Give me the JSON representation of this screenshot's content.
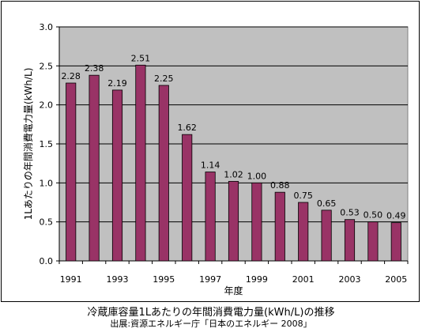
{
  "chart_data": {
    "type": "bar",
    "categories": [
      "1991",
      "1992",
      "1993",
      "1994",
      "1995",
      "1996",
      "1997",
      "1998",
      "1999",
      "2000",
      "2001",
      "2002",
      "2003",
      "2004",
      "2005"
    ],
    "values": [
      2.28,
      2.38,
      2.19,
      2.51,
      2.25,
      1.62,
      1.14,
      1.02,
      1.0,
      0.88,
      0.75,
      0.65,
      0.53,
      0.5,
      0.49
    ],
    "data_labels": [
      "2.28",
      "2.38",
      "2.19",
      "2.51",
      "2.25",
      "1.62",
      "1.14",
      "1.02",
      "1.00",
      "0.88",
      "0.75",
      "0.65",
      "0.53",
      "0.50",
      "0.49"
    ],
    "x_tick_labels": [
      "1991",
      "1993",
      "1995",
      "1997",
      "1999",
      "2001",
      "2003",
      "2005"
    ],
    "y_tick_labels": [
      "0.0",
      "0.5",
      "1.0",
      "1.5",
      "2.0",
      "2.5",
      "3.0"
    ],
    "xlabel": "年度",
    "ylabel": "1Lあたりの年間消費電力量(kWh/L)",
    "ylim": [
      0,
      3.0
    ],
    "grid": true,
    "bar_color": "#993366",
    "plot_background": "#c0c0c0"
  },
  "caption": {
    "title": "冷蔵庫容量1Lあたりの年間消費電力量(kWh/L)の推移",
    "source": "出展:資源エネルギー庁「日本のエネルギー 2008」"
  }
}
